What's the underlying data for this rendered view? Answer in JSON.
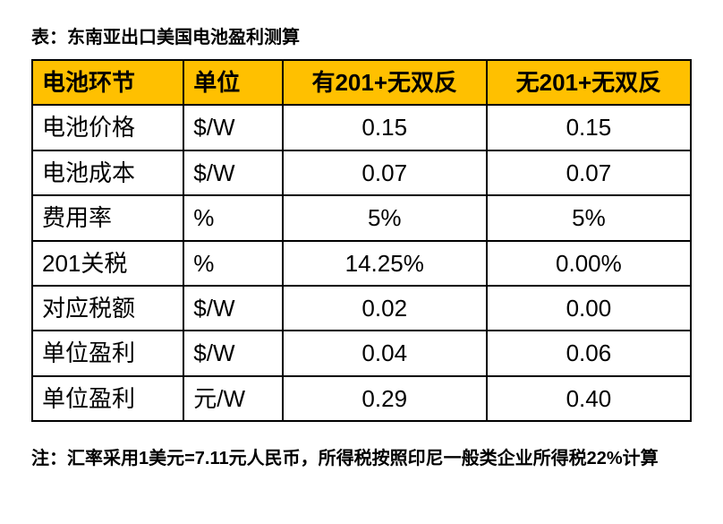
{
  "title": "表：东南亚出口美国电池盈利测算",
  "headers": {
    "c0": "电池环节",
    "c1": "单位",
    "c2": "有201+无双反",
    "c3": "无201+无双反"
  },
  "rows": [
    {
      "label": "电池价格",
      "unit": "$/W",
      "v1": "0.15",
      "v2": "0.15"
    },
    {
      "label": "电池成本",
      "unit": "$/W",
      "v1": "0.07",
      "v2": "0.07"
    },
    {
      "label": "费用率",
      "unit": "%",
      "v1": "5%",
      "v2": "5%"
    },
    {
      "label": "201关税",
      "unit": "%",
      "v1": "14.25%",
      "v2": "0.00%"
    },
    {
      "label": "对应税额",
      "unit": "$/W",
      "v1": "0.02",
      "v2": "0.00"
    },
    {
      "label": "单位盈利",
      "unit": "$/W",
      "v1": "0.04",
      "v2": "0.06"
    },
    {
      "label": "单位盈利",
      "unit": "元/W",
      "v1": "0.29",
      "v2": "0.40"
    }
  ],
  "footnote": "注：汇率采用1美元=7.11元人民币，所得税按照印尼一般类企业所得税22%计算",
  "style": {
    "header_bg": "#ffc000",
    "border_color": "#000000",
    "text_color": "#000000",
    "title_fontsize": 20,
    "cell_fontsize": 26,
    "footnote_fontsize": 20
  }
}
